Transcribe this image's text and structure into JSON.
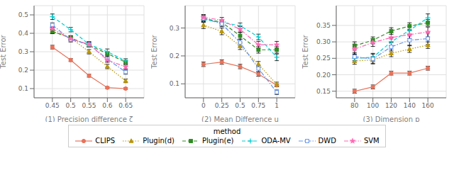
{
  "chart_data": [
    {
      "type": "line",
      "xlabel": "(1) Precision difference ζ",
      "ylabel": "Test Error",
      "x": [
        0.45,
        0.5,
        0.55,
        0.6,
        0.65
      ],
      "xlim": [
        0.4,
        0.7
      ],
      "xticks": [
        0.45,
        0.5,
        0.55,
        0.6,
        0.65
      ],
      "ylim": [
        0.05,
        0.55
      ],
      "yticks": [
        0.1,
        0.2,
        0.3,
        0.4,
        0.5
      ],
      "grid": true,
      "legend": "bottom",
      "legend_title": "method",
      "series": [
        {
          "name": "CLIPS",
          "color": "#E8735A",
          "marker": "circle",
          "line_style": "solid",
          "values": [
            0.325,
            0.255,
            0.17,
            0.105,
            0.1
          ],
          "errors": [
            0.01,
            0.008,
            0.008,
            0.005,
            0.005
          ]
        },
        {
          "name": "Plugin(d)",
          "color": "#B8960C",
          "marker": "triangle",
          "line_style": "dotted",
          "values": [
            0.41,
            0.375,
            0.3,
            0.22,
            0.142
          ],
          "errors": [
            0.012,
            0.012,
            0.012,
            0.012,
            0.01
          ]
        },
        {
          "name": "Plugin(e)",
          "color": "#2E8B22",
          "marker": "square",
          "line_style": "dashed",
          "values": [
            0.41,
            0.375,
            0.335,
            0.29,
            0.243
          ],
          "errors": [
            0.012,
            0.012,
            0.01,
            0.01,
            0.01
          ]
        },
        {
          "name": "ODA-MV",
          "color": "#00CED1",
          "marker": "plus",
          "line_style": "dashed",
          "values": [
            0.49,
            0.42,
            0.34,
            0.3,
            0.25
          ],
          "errors": [
            0.015,
            0.012,
            0.015,
            0.015,
            0.012
          ]
        },
        {
          "name": "DWD",
          "color": "#6495ED",
          "marker": "open_square",
          "line_style": "dashdot",
          "values": [
            0.445,
            0.365,
            0.34,
            0.26,
            0.19
          ],
          "errors": [
            0.012,
            0.012,
            0.012,
            0.015,
            0.012
          ]
        },
        {
          "name": "SVM",
          "color": "#FF69B4",
          "marker": "star",
          "line_style": "dashdot",
          "values": [
            0.425,
            0.37,
            0.34,
            0.255,
            0.218
          ],
          "errors": [
            0.012,
            0.012,
            0.012,
            0.012,
            0.01
          ]
        }
      ]
    },
    {
      "type": "line",
      "xlabel": "(2) Mean Difference u",
      "ylabel": "Test Error",
      "x": [
        0,
        0.25,
        0.5,
        0.75,
        1
      ],
      "xlim": [
        -0.25,
        1.25
      ],
      "xticks": [
        0,
        0.25,
        0.5,
        0.75,
        1
      ],
      "ylim": [
        0.05,
        0.38
      ],
      "yticks": [
        0.1,
        0.2,
        0.3
      ],
      "grid": true,
      "series": [
        {
          "name": "CLIPS",
          "color": "#E8735A",
          "marker": "circle",
          "line_style": "solid",
          "values": [
            0.17,
            0.178,
            0.162,
            0.135,
            0.095
          ],
          "errors": [
            0.008,
            0.008,
            0.008,
            0.008,
            0.005
          ]
        },
        {
          "name": "Plugin(d)",
          "color": "#B8960C",
          "marker": "triangle",
          "line_style": "dotted",
          "values": [
            0.31,
            0.288,
            0.235,
            0.17,
            0.098
          ],
          "errors": [
            0.012,
            0.012,
            0.012,
            0.01,
            0.008
          ]
        },
        {
          "name": "Plugin(e)",
          "color": "#2E8B22",
          "marker": "square",
          "line_style": "dashed",
          "values": [
            0.335,
            0.32,
            0.272,
            0.222,
            0.222
          ],
          "errors": [
            0.012,
            0.01,
            0.012,
            0.012,
            0.012
          ]
        },
        {
          "name": "ODA-MV",
          "color": "#00CED1",
          "marker": "plus",
          "line_style": "dashed",
          "values": [
            0.33,
            0.32,
            0.308,
            0.268,
            0.195
          ],
          "errors": [
            0.01,
            0.01,
            0.01,
            0.01,
            0.012
          ]
        },
        {
          "name": "DWD",
          "color": "#6495ED",
          "marker": "open_square",
          "line_style": "dashdot",
          "values": [
            0.335,
            0.315,
            0.248,
            0.155,
            0.07
          ],
          "errors": [
            0.01,
            0.01,
            0.012,
            0.012,
            0.008
          ]
        },
        {
          "name": "SVM",
          "color": "#FF69B4",
          "marker": "star",
          "line_style": "dashdot",
          "values": [
            0.338,
            0.328,
            0.295,
            0.24,
            0.24
          ],
          "errors": [
            0.01,
            0.01,
            0.01,
            0.012,
            0.012
          ]
        }
      ]
    },
    {
      "type": "line",
      "xlabel": "(3) Dimension p",
      "ylabel": "Test Error",
      "x": [
        80,
        100,
        120,
        140,
        160
      ],
      "xlim": [
        60,
        180
      ],
      "xticks": [
        80,
        100,
        120,
        140,
        160
      ],
      "ylim": [
        0.13,
        0.41
      ],
      "yticks": [
        0.15,
        {
          "value": 0.2,
          "label": "0.20"
        },
        0.25,
        {
          "value": 0.3,
          "label": "0.30"
        },
        0.35
      ],
      "grid": true,
      "series": [
        {
          "name": "CLIPS",
          "color": "#E8735A",
          "marker": "circle",
          "line_style": "solid",
          "values": [
            0.15,
            0.163,
            0.205,
            0.205,
            0.22
          ],
          "errors": [
            0.006,
            0.006,
            0.006,
            0.006,
            0.006
          ]
        },
        {
          "name": "Plugin(d)",
          "color": "#B8960C",
          "marker": "triangle",
          "line_style": "dotted",
          "values": [
            0.242,
            0.245,
            0.265,
            0.278,
            0.29
          ],
          "errors": [
            0.01,
            0.01,
            0.01,
            0.01,
            0.01
          ]
        },
        {
          "name": "Plugin(e)",
          "color": "#2E8B22",
          "marker": "square",
          "line_style": "dashed",
          "values": [
            0.288,
            0.305,
            0.333,
            0.348,
            0.358
          ],
          "errors": [
            0.012,
            0.01,
            0.01,
            0.01,
            0.01
          ]
        },
        {
          "name": "ODA-MV",
          "color": "#00CED1",
          "marker": "plus",
          "line_style": "dashed",
          "values": [
            0.25,
            0.253,
            0.3,
            0.335,
            0.373
          ],
          "errors": [
            0.012,
            0.012,
            0.012,
            0.012,
            0.012
          ]
        },
        {
          "name": "DWD",
          "color": "#6495ED",
          "marker": "open_square",
          "line_style": "dashdot",
          "values": [
            0.255,
            0.248,
            0.285,
            0.305,
            0.31
          ],
          "errors": [
            0.012,
            0.015,
            0.015,
            0.015,
            0.018
          ]
        },
        {
          "name": "SVM",
          "color": "#FF69B4",
          "marker": "star",
          "line_style": "dashdot",
          "values": [
            0.278,
            0.298,
            0.313,
            0.322,
            0.33
          ],
          "errors": [
            0.015,
            0.012,
            0.015,
            0.012,
            0.015
          ]
        }
      ]
    }
  ]
}
